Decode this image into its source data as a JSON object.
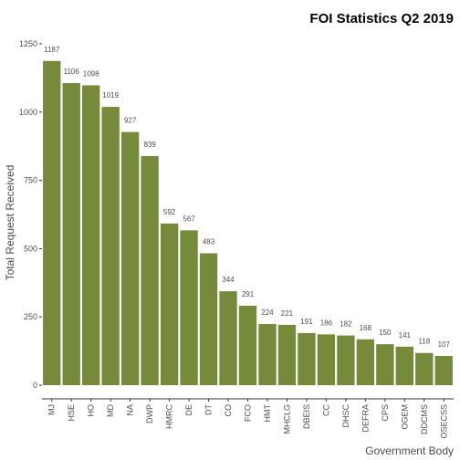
{
  "chart_data": {
    "type": "bar",
    "title": "FOI Statistics Q2 2019",
    "xlabel": "Government Body",
    "ylabel": "Total Request Received",
    "categories": [
      "MJ",
      "HSE",
      "HO",
      "MD",
      "NA",
      "DWP",
      "HMRC",
      "DE",
      "DT",
      "CO",
      "FCO",
      "HMT",
      "MHCLG",
      "DBEIS",
      "CC",
      "DHSC",
      "DEFRA",
      "CPS",
      "OGEM",
      "DDCMS",
      "OSECSS"
    ],
    "values": [
      1187,
      1106,
      1098,
      1019,
      927,
      839,
      592,
      567,
      483,
      344,
      291,
      224,
      221,
      191,
      186,
      182,
      168,
      150,
      141,
      118,
      107
    ],
    "ylim": [
      -50,
      1290
    ],
    "yticks": [
      0,
      250,
      500,
      750,
      1000,
      1250
    ],
    "bar_color": "#758a3b",
    "grid": false
  }
}
